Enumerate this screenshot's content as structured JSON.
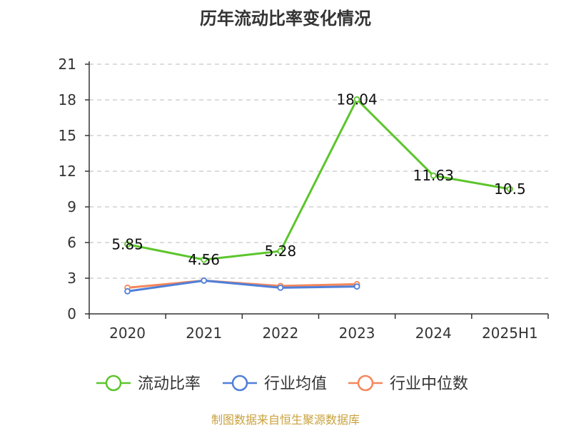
{
  "chart_data": {
    "type": "line",
    "title": "历年流动比率变化情况",
    "categories": [
      "2020",
      "2021",
      "2022",
      "2023",
      "2024",
      "2025H1"
    ],
    "yticks": [
      0,
      3,
      6,
      9,
      12,
      15,
      18,
      21
    ],
    "ylim": [
      0,
      21
    ],
    "grid": "horizontal-dashed",
    "legend_position": "bottom",
    "series": [
      {
        "name": "流动比率",
        "color": "#5cc52c",
        "values": [
          5.85,
          4.56,
          5.28,
          18.04,
          11.63,
          10.5
        ],
        "labels": [
          "5.85",
          "4.56",
          "5.28",
          "18.04",
          "11.63",
          "10.5"
        ]
      },
      {
        "name": "行业均值",
        "color": "#4f7fd9",
        "values": [
          1.9,
          2.8,
          2.2,
          2.3,
          null,
          null
        ]
      },
      {
        "name": "行业中位数",
        "color": "#f4875b",
        "values": [
          2.2,
          2.8,
          2.35,
          2.5,
          null,
          null
        ]
      }
    ]
  },
  "source": {
    "text": "制图数据来自恒生聚源数据库",
    "color": "#c8a23c"
  }
}
